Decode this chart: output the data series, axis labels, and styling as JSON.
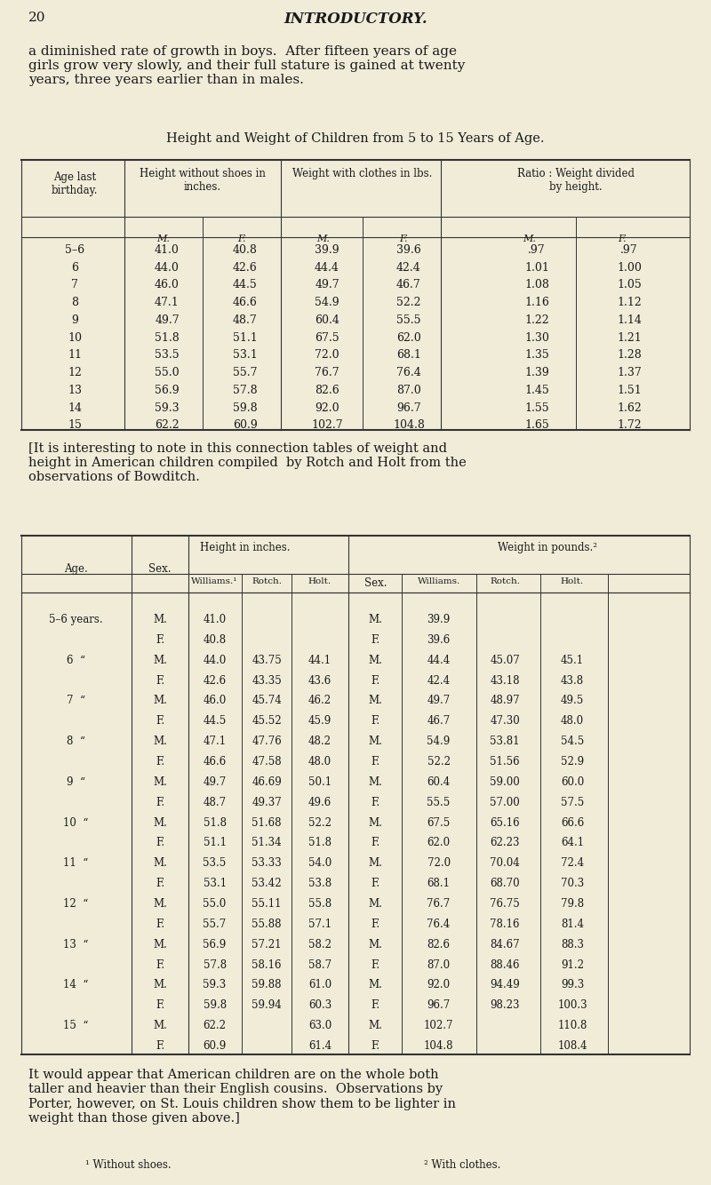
{
  "bg_color": "#f0ecd8",
  "text_color": "#1a1a1a",
  "page_number": "20",
  "page_header": "INTRODUCTORY.",
  "intro_text": "a diminished rate of growth in boys.  After fifteen years of age\ngirls grow very slowly, and their full stature is gained at twenty\nyears, three years earlier than in males.",
  "table1_title": "Height and Weight of Children from 5 to 15 Years of Age.",
  "table1_col_headers": [
    "Age last\nbirthday.",
    "Height without shoes in\ninches.",
    "Weight with clothes in lbs.",
    "Ratio : Weight divided\nby height."
  ],
  "table1_sub_headers": [
    "M.",
    "F.",
    "M.",
    "F.",
    "M.",
    "F."
  ],
  "table1_data": [
    [
      "5–6",
      "41.0",
      "40.8",
      "39.9",
      "39.6",
      ".97",
      ".97"
    ],
    [
      "6",
      "44.0",
      "42.6",
      "44.4",
      "42.4",
      "1.01",
      "1.00"
    ],
    [
      "7",
      "46.0",
      "44.5",
      "49.7",
      "46.7",
      "1.08",
      "1.05"
    ],
    [
      "8",
      "47.1",
      "46.6",
      "54.9",
      "52.2",
      "1.16",
      "1.12"
    ],
    [
      "9",
      "49.7",
      "48.7",
      "60.4",
      "55.5",
      "1.22",
      "1.14"
    ],
    [
      "10",
      "51.8",
      "51.1",
      "67.5",
      "62.0",
      "1.30",
      "1.21"
    ],
    [
      "11",
      "53.5",
      "53.1",
      "72.0",
      "68.1",
      "1.35",
      "1.28"
    ],
    [
      "12",
      "55.0",
      "55.7",
      "76.7",
      "76.4",
      "1.39",
      "1.37"
    ],
    [
      "13",
      "56.9",
      "57.8",
      "82.6",
      "87.0",
      "1.45",
      "1.51"
    ],
    [
      "14",
      "59.3",
      "59.8",
      "92.0",
      "96.7",
      "1.55",
      "1.62"
    ],
    [
      "15",
      "62.2",
      "60.9",
      "102.7",
      "104.8",
      "1.65",
      "1.72"
    ]
  ],
  "bracket_text": "[It is interesting to note in this connection tables of weight and\nheight in American children compiled  by Rotch and Holt from the\nobservations of Bowditch.",
  "table2_title_height": "Height in inches.",
  "table2_title_weight": "Weight in pounds.²",
  "table2_col_headers_left": [
    "Age.",
    "Sex.",
    "Williams.¹",
    "Rotch.",
    "Holt.",
    "Sex."
  ],
  "table2_col_headers_right": [
    "Williams.",
    "Rotch.",
    "Holt."
  ],
  "table2_data": [
    [
      "5–6 years.",
      "M.",
      "41.0",
      "",
      "",
      "M.",
      "39.9",
      "",
      ""
    ],
    [
      "",
      "F.",
      "40.8",
      "",
      "",
      "F.",
      "39.6",
      "",
      ""
    ],
    [
      "6  “",
      "M.",
      "44.0",
      "43.75",
      "44.1",
      "M.",
      "44.4",
      "45.07",
      "45.1"
    ],
    [
      "",
      "F.",
      "42.6",
      "43.35",
      "43.6",
      "F.",
      "42.4",
      "43.18",
      "43.8"
    ],
    [
      "7  “",
      "M.",
      "46.0",
      "45.74",
      "46.2",
      "M.",
      "49.7",
      "48.97",
      "49.5"
    ],
    [
      "",
      "F.",
      "44.5",
      "45.52",
      "45.9",
      "F.",
      "46.7",
      "47.30",
      "48.0"
    ],
    [
      "8  “",
      "M.",
      "47.1",
      "47.76",
      "48.2",
      "M.",
      "54.9",
      "53.81",
      "54.5"
    ],
    [
      "",
      "F.",
      "46.6",
      "47.58",
      "48.0",
      "F.",
      "52.2",
      "51.56",
      "52.9"
    ],
    [
      "9  “",
      "M.",
      "49.7",
      "46.69",
      "50.1",
      "M.",
      "60.4",
      "59.00",
      "60.0"
    ],
    [
      "",
      "F.",
      "48.7",
      "49.37",
      "49.6",
      "F.",
      "55.5",
      "57.00",
      "57.5"
    ],
    [
      "10  “",
      "M.",
      "51.8",
      "51.68",
      "52.2",
      "M.",
      "67.5",
      "65.16",
      "66.6"
    ],
    [
      "",
      "F.",
      "51.1",
      "51.34",
      "51.8",
      "F.",
      "62.0",
      "62.23",
      "64.1"
    ],
    [
      "11  “",
      "M.",
      "53.5",
      "53.33",
      "54.0",
      "M.",
      "72.0",
      "70.04",
      "72.4"
    ],
    [
      "",
      "F.",
      "53.1",
      "53.42",
      "53.8",
      "F.",
      "68.1",
      "68.70",
      "70.3"
    ],
    [
      "12  “",
      "M.",
      "55.0",
      "55.11",
      "55.8",
      "M.",
      "76.7",
      "76.75",
      "79.8"
    ],
    [
      "",
      "F.",
      "55.7",
      "55.88",
      "57.1",
      "F.",
      "76.4",
      "78.16",
      "81.4"
    ],
    [
      "13  “",
      "M.",
      "56.9",
      "57.21",
      "58.2",
      "M.",
      "82.6",
      "84.67",
      "88.3"
    ],
    [
      "",
      "F.",
      "57.8",
      "58.16",
      "58.7",
      "F.",
      "87.0",
      "88.46",
      "91.2"
    ],
    [
      "14  “",
      "M.",
      "59.3",
      "59.88",
      "61.0",
      "M.",
      "92.0",
      "94.49",
      "99.3"
    ],
    [
      "",
      "F.",
      "59.8",
      "59.94",
      "60.3",
      "F.",
      "96.7",
      "98.23",
      "100.3"
    ],
    [
      "15  “",
      "M.",
      "62.2",
      "",
      "63.0",
      "M.",
      "102.7",
      "",
      "110.8"
    ],
    [
      "",
      "F.",
      "60.9",
      "",
      "61.4",
      "F.",
      "104.8",
      "",
      "108.4"
    ]
  ],
  "closing_text": "It would appear that American children are on the whole both\ntaller and heavier than their English cousins.  Observations by\nPorter, however, on St. Louis children show them to be lighter in\nweight than those given above.]",
  "footnote1": "¹ Without shoes.",
  "footnote2": "² With clothes."
}
